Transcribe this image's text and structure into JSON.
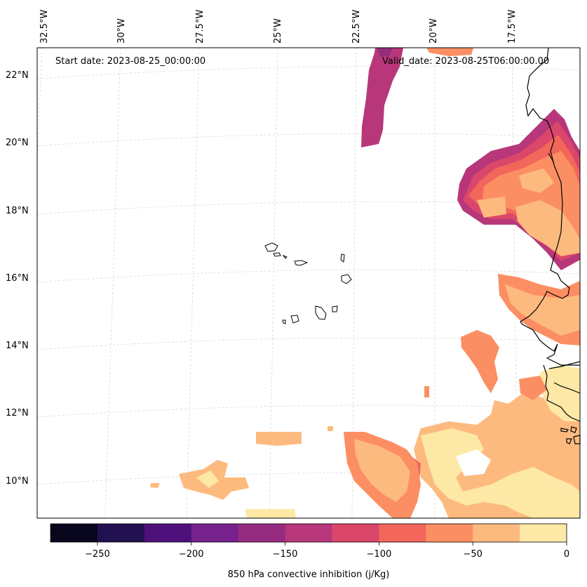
{
  "header": {
    "start_date": "Start date: 2023-08-25_00:00:00",
    "valid_date": "Valid_date: 2023-08-25T06:00:00.00"
  },
  "axes": {
    "lon_labels": [
      "32.5°W",
      "30°W",
      "27.5°W",
      "25°W",
      "22.5°W",
      "20°W",
      "17.5°W"
    ],
    "lat_labels": [
      "22°N",
      "20°N",
      "18°N",
      "16°N",
      "14°N",
      "12°N",
      "10°N"
    ]
  },
  "colorbar": {
    "label": "850 hPa convective inhibition (j/Kg)",
    "ticks": [
      "−250",
      "−200",
      "−150",
      "−100",
      "−50",
      "0"
    ],
    "colors": [
      "#07061c",
      "#221150",
      "#4e117b",
      "#76218c",
      "#952c80",
      "#b7377a",
      "#db476a",
      "#f2665b",
      "#fc8e63",
      "#fdba7f",
      "#fde8a6"
    ]
  },
  "map": {
    "projection": "lambert-conformal",
    "region": "Cape Verde / West African coast",
    "color_fill": {
      "very_light": "#fde8a6",
      "light": "#fdba7f",
      "orange": "#fc8e63",
      "salmon": "#f2665b",
      "red": "#db476a",
      "magenta": "#b7377a",
      "purple": "#952c80"
    }
  }
}
